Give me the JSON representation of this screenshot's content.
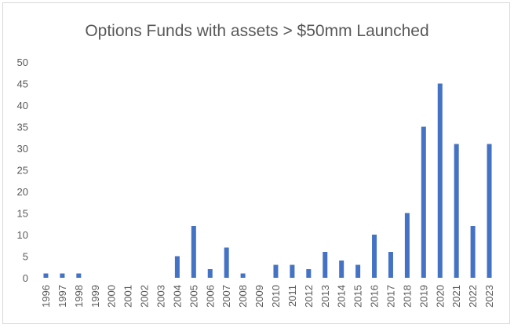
{
  "chart_data": {
    "type": "bar",
    "title": "Options Funds with assets > $50mm Launched",
    "xlabel": "",
    "ylabel": "",
    "ylim": [
      0,
      50
    ],
    "yticks": [
      0,
      5,
      10,
      15,
      20,
      25,
      30,
      35,
      40,
      45,
      50
    ],
    "grid": false,
    "legend": "none",
    "bar_color": "#4472c4",
    "categories": [
      "1996",
      "1997",
      "1998",
      "1999",
      "2000",
      "2001",
      "2002",
      "2003",
      "2004",
      "2005",
      "2006",
      "2007",
      "2008",
      "2009",
      "2010",
      "2011",
      "2012",
      "2013",
      "2014",
      "2015",
      "2016",
      "2017",
      "2018",
      "2019",
      "2020",
      "2021",
      "2022",
      "2023"
    ],
    "values": [
      1,
      1,
      1,
      0,
      0,
      0,
      0,
      0,
      5,
      12,
      2,
      7,
      1,
      0,
      3,
      3,
      2,
      6,
      4,
      3,
      10,
      6,
      15,
      35,
      45,
      31,
      12,
      31
    ]
  }
}
